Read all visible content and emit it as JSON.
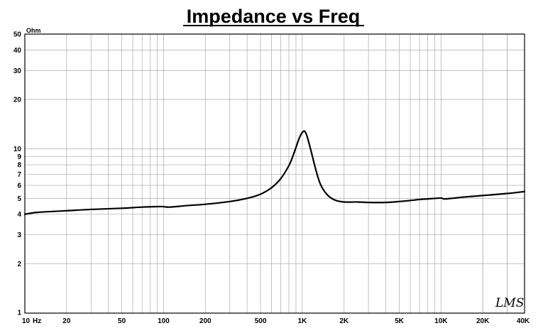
{
  "chart_data": {
    "type": "line",
    "title": "Impedance vs Freq",
    "y_unit": "Ohm",
    "x_unit": "Hz",
    "x_scale": "log",
    "y_scale": "log",
    "xlim": [
      10,
      40000
    ],
    "ylim": [
      1,
      50
    ],
    "grid": true,
    "x_tick_labels": [
      {
        "value": 10,
        "label": "10"
      },
      {
        "value": 20,
        "label": "20"
      },
      {
        "value": 50,
        "label": "50"
      },
      {
        "value": 100,
        "label": "100"
      },
      {
        "value": 200,
        "label": "200"
      },
      {
        "value": 500,
        "label": "500"
      },
      {
        "value": 1000,
        "label": "1K"
      },
      {
        "value": 2000,
        "label": "2K"
      },
      {
        "value": 5000,
        "label": "5K"
      },
      {
        "value": 10000,
        "label": "10K"
      },
      {
        "value": 20000,
        "label": "20K"
      },
      {
        "value": 40000,
        "label": "40K"
      }
    ],
    "y_tick_labels": [
      {
        "value": 1,
        "label": "1"
      },
      {
        "value": 2,
        "label": "2"
      },
      {
        "value": 3,
        "label": "3"
      },
      {
        "value": 4,
        "label": "4"
      },
      {
        "value": 5,
        "label": "5"
      },
      {
        "value": 6,
        "label": "6"
      },
      {
        "value": 7,
        "label": "7"
      },
      {
        "value": 8,
        "label": "8"
      },
      {
        "value": 9,
        "label": "9"
      },
      {
        "value": 10,
        "label": "10"
      },
      {
        "value": 20,
        "label": "20"
      },
      {
        "value": 30,
        "label": "30"
      },
      {
        "value": 40,
        "label": "40"
      },
      {
        "value": 50,
        "label": "50"
      }
    ],
    "series": [
      {
        "color": "#000000",
        "x": [
          10,
          12,
          15,
          20,
          30,
          50,
          70,
          90,
          100,
          110,
          150,
          200,
          300,
          400,
          500,
          600,
          700,
          800,
          850,
          900,
          950,
          1000,
          1040,
          1080,
          1150,
          1250,
          1350,
          1500,
          1700,
          2000,
          2500,
          3000,
          4000,
          5000,
          6000,
          7000,
          8000,
          10000,
          10500,
          12000,
          15000,
          20000,
          30000,
          40000
        ],
        "y": [
          4.0,
          4.1,
          4.15,
          4.2,
          4.28,
          4.35,
          4.42,
          4.45,
          4.45,
          4.42,
          4.52,
          4.6,
          4.78,
          5.0,
          5.3,
          5.8,
          6.6,
          7.9,
          8.9,
          10.2,
          11.6,
          12.6,
          12.8,
          12.0,
          9.9,
          7.5,
          6.1,
          5.3,
          4.9,
          4.75,
          4.75,
          4.72,
          4.72,
          4.78,
          4.85,
          4.92,
          4.96,
          5.02,
          4.95,
          5.0,
          5.1,
          5.2,
          5.35,
          5.5
        ]
      }
    ],
    "watermark": "LMS"
  }
}
